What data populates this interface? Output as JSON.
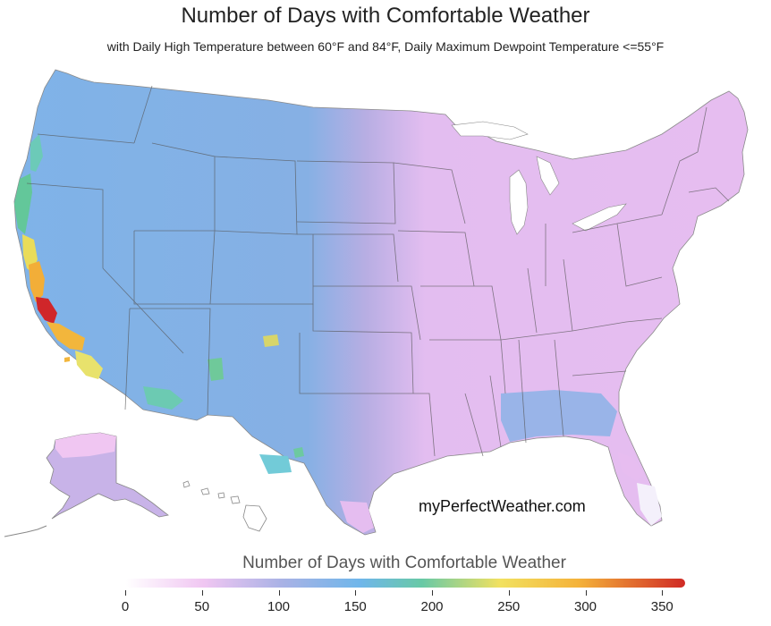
{
  "title": "Number of Days with Comfortable Weather",
  "subtitle": "with Daily High Temperature between 60°F and 84°F, Daily Maximum Dewpoint Temperature <=55°F",
  "watermark": "myPerfectWeather.com",
  "legend": {
    "title": "Number of Days with Comfortable Weather",
    "min": 0,
    "max": 365,
    "ticks": [
      "0",
      "50",
      "100",
      "150",
      "200",
      "250",
      "300",
      "350"
    ],
    "gradient_colors": [
      "#ffffff",
      "#f0c6f2",
      "#a9b2e5",
      "#6fb6ea",
      "#68c9a6",
      "#f2e160",
      "#f4b23a",
      "#d02a25"
    ]
  },
  "map_colors": {
    "east_pink": "#e6bdf0",
    "transition_lavender": "#b8aee3",
    "west_blue": "#7fb3e8",
    "high_green": "#63c79a",
    "high_yellow": "#eadc5a",
    "high_orange": "#f2ae38",
    "max_red": "#d0262a",
    "state_borders": "#555555"
  }
}
